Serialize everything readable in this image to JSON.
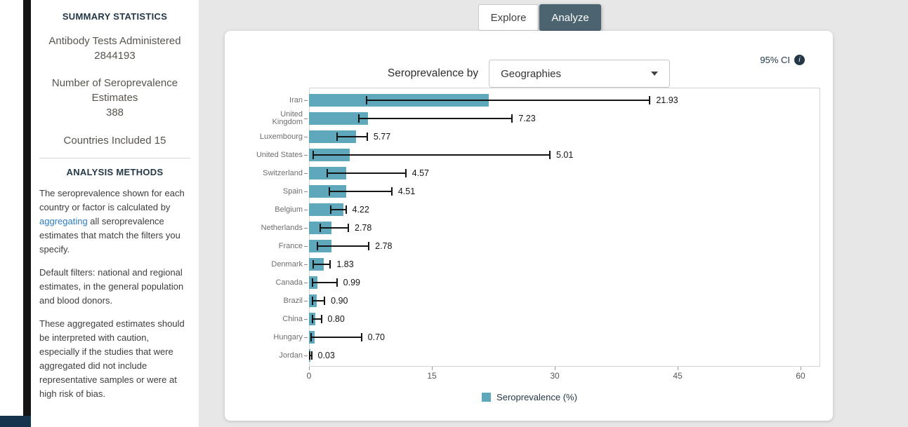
{
  "sidebar": {
    "summary_title": "SUMMARY STATISTICS",
    "stats": [
      {
        "label": "Antibody Tests Administered",
        "value": "2844193"
      },
      {
        "label": "Number of Seroprevalence Estimates",
        "value": "388"
      }
    ],
    "countries_label": "Countries Included",
    "countries_value": "15",
    "methods_title": "ANALYSIS METHODS",
    "p1_before": "The seroprevalence shown for each country or factor is calculated by ",
    "p1_link": "aggregating",
    "p1_after": " all seroprevalence estimates that match the filters you specify.",
    "p2": "Default filters: national and regional estimates, in the general population and blood donors.",
    "p3": "These aggregated estimates should be interpreted with caution, especially if the studies that were aggregated did not include representative samples or were at high risk of bias."
  },
  "tabs": [
    {
      "label": "Explore",
      "active": false
    },
    {
      "label": "Analyze",
      "active": true
    }
  ],
  "chart_header": {
    "seroprevalence_by_label": "Seroprevalence by",
    "dropdown_value": "Geographies",
    "ci_label": "95% CI"
  },
  "chart_data": {
    "type": "bar",
    "orientation": "horizontal",
    "title": "Seroprevalence by Geographies",
    "categories": [
      "Iran",
      "United Kingdom",
      "Luxembourg",
      "United States",
      "Switzerland",
      "Spain",
      "Belgium",
      "Netherlands",
      "France",
      "Denmark",
      "Canada",
      "Brazil",
      "China",
      "Hungary",
      "Jordan"
    ],
    "tick_labels": [
      "Iran",
      "United\nKingdom",
      "Luxembourg",
      "United States",
      "Switzerland",
      "Spain",
      "Belgium",
      "Netherlands",
      "France",
      "Denmark",
      "Canada",
      "Brazil",
      "China",
      "Hungary",
      "Jordan"
    ],
    "values": [
      21.93,
      7.23,
      5.77,
      5.01,
      4.57,
      4.51,
      4.22,
      2.78,
      2.78,
      1.83,
      0.99,
      0.9,
      0.8,
      0.7,
      0.03
    ],
    "ci_low": [
      6.9,
      6.0,
      3.3,
      0.4,
      2.1,
      2.4,
      2.6,
      1.3,
      0.9,
      0.4,
      0.3,
      0.3,
      0.3,
      0.2,
      0.0
    ],
    "ci_high": [
      41.6,
      24.8,
      7.1,
      29.4,
      11.8,
      10.1,
      4.5,
      4.8,
      7.3,
      2.6,
      3.4,
      1.9,
      1.5,
      6.4,
      0.3
    ],
    "xticks": [
      0,
      15,
      30,
      45,
      60
    ],
    "xlim": [
      0,
      62.4
    ],
    "xlabel": "",
    "ylabel": "",
    "legend": "Seroprevalence (%)",
    "grid": false,
    "legend_position": "bottom-center",
    "bar_color": "#5FA8BC",
    "error_color": "#141414"
  },
  "colors": {
    "accent_teal": "#5FA8BC",
    "tab_active_bg": "#4C6370",
    "link": "#2F7BBF",
    "heading": "#243746",
    "page_bg_right": "#E7E7E7"
  }
}
